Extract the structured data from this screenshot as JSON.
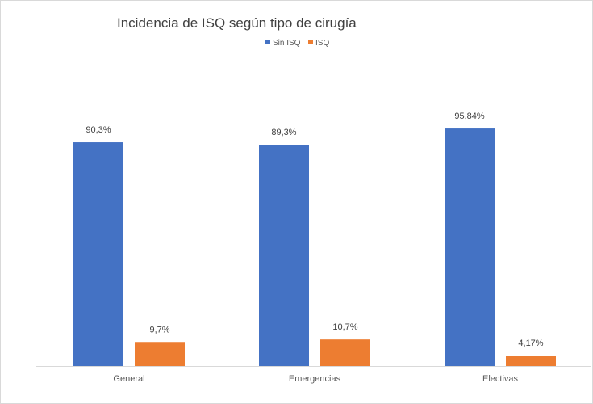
{
  "chart_data": {
    "type": "bar",
    "title": "Incidencia de ISQ según tipo de cirugía",
    "categories": [
      "General",
      "Emergencias",
      "Electivas"
    ],
    "series": [
      {
        "name": "Sin ISQ",
        "values": [
          90.3,
          89.3,
          95.84
        ],
        "labels": [
          "90,3%",
          "89,3%",
          "95,84%"
        ],
        "color": "#4472C4"
      },
      {
        "name": "ISQ",
        "values": [
          9.7,
          10.7,
          4.17
        ],
        "labels": [
          "9,7%",
          "10,7%",
          "4,17%"
        ],
        "color": "#ED7D31"
      }
    ],
    "xlabel": "",
    "ylabel": "",
    "ylim": [
      0,
      100
    ],
    "grid": false,
    "legend": "top-center",
    "y_axis_visible": false
  }
}
